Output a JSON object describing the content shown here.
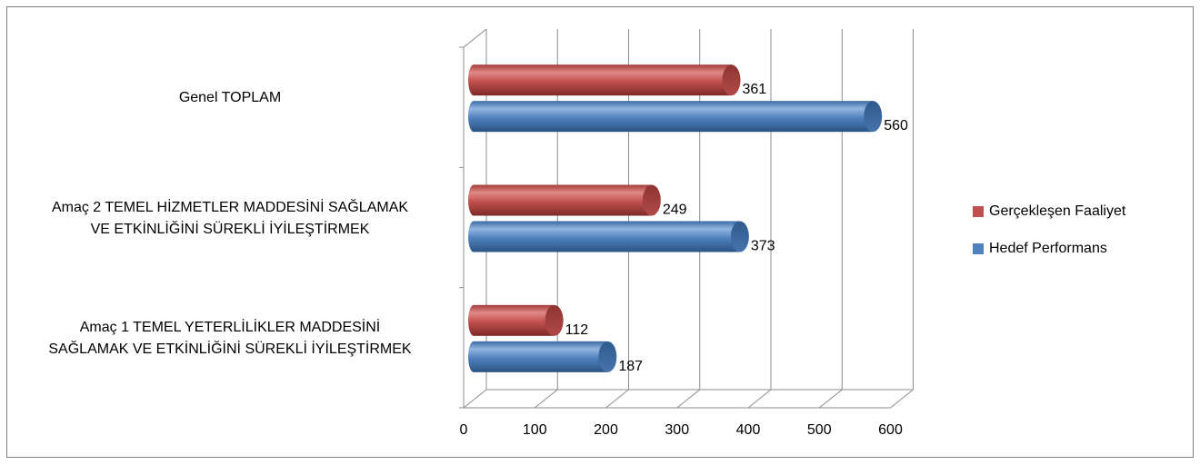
{
  "chart_data": {
    "type": "bar",
    "orientation": "horizontal",
    "style": "3d-cylinder",
    "categories": [
      "Amaç 1 TEMEL YETERLİLİKLER MADDESİNİ SAĞLAMAK VE ETKİNLİĞİNİ SÜREKLİ İYİLEŞTİRMEK",
      "Amaç 2 TEMEL HİZMETLER MADDESİNİ SAĞLAMAK VE ETKİNLİĞİNİ SÜREKLİ İYİLEŞTİRMEK",
      "Genel TOPLAM"
    ],
    "category_lines": [
      [
        "Amaç 1 TEMEL YETERLİLİKLER MADDESİNİ",
        "SAĞLAMAK VE ETKİNLİĞİNİ SÜREKLİ İYİLEŞTİRMEK"
      ],
      [
        "Amaç 2 TEMEL HİZMETLER MADDESİNİ SAĞLAMAK",
        "VE ETKİNLİĞİNİ SÜREKLİ İYİLEŞTİRMEK"
      ],
      [
        "Genel TOPLAM"
      ]
    ],
    "series": [
      {
        "name": "Gerçekleşen Faaliyet",
        "values": [
          112,
          249,
          361
        ],
        "color": "#c0504d"
      },
      {
        "name": "Hedef Performans",
        "values": [
          187,
          373,
          560
        ],
        "color": "#4f81bd"
      }
    ],
    "xlim": [
      0,
      600
    ],
    "x_ticks": [
      0,
      100,
      200,
      300,
      400,
      500,
      600
    ],
    "x_tick_labels": [
      "0",
      "100",
      "200",
      "300",
      "400",
      "500",
      "600"
    ],
    "grid": true,
    "legend_position": "right",
    "data_labels": true
  }
}
